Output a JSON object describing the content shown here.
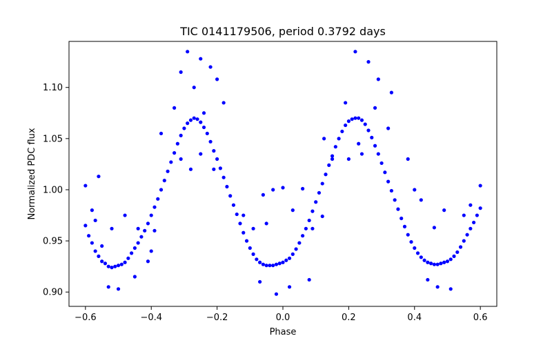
{
  "chart_data": {
    "type": "scatter",
    "title": "TIC 0141179506, period 0.3792 days",
    "xlabel": "Phase",
    "ylabel": "Normalized PDC flux",
    "xlim": [
      -0.65,
      0.65
    ],
    "ylim": [
      0.886,
      1.145
    ],
    "xticks": [
      -0.6,
      -0.4,
      -0.2,
      0.0,
      0.2,
      0.4,
      0.6
    ],
    "xtick_labels": [
      "−0.6",
      "−0.4",
      "−0.2",
      "0.0",
      "0.2",
      "0.4",
      "0.6"
    ],
    "yticks": [
      0.9,
      0.95,
      1.0,
      1.05,
      1.1
    ],
    "ytick_labels": [
      "0.90",
      "0.95",
      "1.00",
      "1.05",
      "1.10"
    ],
    "grid": false,
    "marker_color": "#0000ff",
    "series": [
      {
        "points": [
          [
            -0.6,
            0.965
          ],
          [
            -0.59,
            0.955
          ],
          [
            -0.58,
            0.948
          ],
          [
            -0.57,
            0.94
          ],
          [
            -0.56,
            0.935
          ],
          [
            -0.55,
            0.93
          ],
          [
            -0.54,
            0.928
          ],
          [
            -0.53,
            0.925
          ],
          [
            -0.52,
            0.924
          ],
          [
            -0.51,
            0.925
          ],
          [
            -0.5,
            0.926
          ],
          [
            -0.49,
            0.927
          ],
          [
            -0.48,
            0.929
          ],
          [
            -0.47,
            0.933
          ],
          [
            -0.46,
            0.938
          ],
          [
            -0.45,
            0.943
          ],
          [
            -0.44,
            0.948
          ],
          [
            -0.43,
            0.954
          ],
          [
            -0.42,
            0.96
          ],
          [
            -0.41,
            0.967
          ],
          [
            -0.4,
            0.975
          ],
          [
            -0.39,
            0.983
          ],
          [
            -0.38,
            0.991
          ],
          [
            -0.37,
            1.0
          ],
          [
            -0.36,
            1.009
          ],
          [
            -0.35,
            1.018
          ],
          [
            -0.34,
            1.027
          ],
          [
            -0.33,
            1.036
          ],
          [
            -0.32,
            1.045
          ],
          [
            -0.31,
            1.053
          ],
          [
            -0.3,
            1.06
          ],
          [
            -0.29,
            1.065
          ],
          [
            -0.28,
            1.068
          ],
          [
            -0.27,
            1.07
          ],
          [
            -0.26,
            1.069
          ],
          [
            -0.25,
            1.066
          ],
          [
            -0.24,
            1.061
          ],
          [
            -0.23,
            1.055
          ],
          [
            -0.22,
            1.047
          ],
          [
            -0.21,
            1.038
          ],
          [
            -0.2,
            1.03
          ],
          [
            -0.19,
            1.021
          ],
          [
            -0.18,
            1.012
          ],
          [
            -0.17,
            1.003
          ],
          [
            -0.16,
            0.994
          ],
          [
            -0.15,
            0.985
          ],
          [
            -0.14,
            0.976
          ],
          [
            -0.13,
            0.967
          ],
          [
            -0.12,
            0.958
          ],
          [
            -0.11,
            0.95
          ],
          [
            -0.1,
            0.943
          ],
          [
            -0.09,
            0.937
          ],
          [
            -0.08,
            0.932
          ],
          [
            -0.07,
            0.929
          ],
          [
            -0.06,
            0.927
          ],
          [
            -0.05,
            0.926
          ],
          [
            -0.04,
            0.926
          ],
          [
            -0.03,
            0.926
          ],
          [
            -0.02,
            0.927
          ],
          [
            -0.01,
            0.928
          ],
          [
            0.0,
            0.929
          ],
          [
            0.01,
            0.931
          ],
          [
            0.02,
            0.933
          ],
          [
            0.03,
            0.937
          ],
          [
            0.04,
            0.942
          ],
          [
            0.05,
            0.948
          ],
          [
            0.06,
            0.955
          ],
          [
            0.07,
            0.962
          ],
          [
            0.08,
            0.97
          ],
          [
            0.09,
            0.979
          ],
          [
            0.1,
            0.988
          ],
          [
            0.11,
            0.997
          ],
          [
            0.12,
            1.006
          ],
          [
            0.13,
            1.015
          ],
          [
            0.14,
            1.024
          ],
          [
            0.15,
            1.033
          ],
          [
            0.16,
            1.042
          ],
          [
            0.17,
            1.05
          ],
          [
            0.18,
            1.057
          ],
          [
            0.19,
            1.063
          ],
          [
            0.2,
            1.067
          ],
          [
            0.21,
            1.069
          ],
          [
            0.22,
            1.07
          ],
          [
            0.23,
            1.07
          ],
          [
            0.24,
            1.068
          ],
          [
            0.25,
            1.064
          ],
          [
            0.26,
            1.058
          ],
          [
            0.27,
            1.051
          ],
          [
            0.28,
            1.043
          ],
          [
            0.29,
            1.035
          ],
          [
            0.3,
            1.026
          ],
          [
            0.31,
            1.017
          ],
          [
            0.32,
            1.008
          ],
          [
            0.33,
            0.999
          ],
          [
            0.34,
            0.99
          ],
          [
            0.35,
            0.981
          ],
          [
            0.36,
            0.972
          ],
          [
            0.37,
            0.964
          ],
          [
            0.38,
            0.956
          ],
          [
            0.39,
            0.949
          ],
          [
            0.4,
            0.943
          ],
          [
            0.41,
            0.938
          ],
          [
            0.42,
            0.934
          ],
          [
            0.43,
            0.931
          ],
          [
            0.44,
            0.929
          ],
          [
            0.45,
            0.928
          ],
          [
            0.46,
            0.927
          ],
          [
            0.47,
            0.927
          ],
          [
            0.48,
            0.928
          ],
          [
            0.49,
            0.929
          ],
          [
            0.5,
            0.93
          ],
          [
            0.51,
            0.932
          ],
          [
            0.52,
            0.935
          ],
          [
            0.53,
            0.939
          ],
          [
            0.54,
            0.944
          ],
          [
            0.55,
            0.95
          ],
          [
            0.56,
            0.956
          ],
          [
            0.57,
            0.962
          ],
          [
            0.58,
            0.968
          ],
          [
            0.59,
            0.975
          ],
          [
            0.6,
            0.982
          ],
          [
            -0.29,
            1.135
          ],
          [
            -0.25,
            1.128
          ],
          [
            -0.22,
            1.12
          ],
          [
            -0.31,
            1.115
          ],
          [
            -0.2,
            1.108
          ],
          [
            -0.27,
            1.1
          ],
          [
            -0.18,
            1.085
          ],
          [
            -0.33,
            1.08
          ],
          [
            -0.37,
            1.055
          ],
          [
            -0.25,
            1.035
          ],
          [
            -0.31,
            1.03
          ],
          [
            -0.21,
            1.02
          ],
          [
            -0.56,
            1.013
          ],
          [
            -0.6,
            1.004
          ],
          [
            -0.58,
            0.98
          ],
          [
            -0.57,
            0.97
          ],
          [
            -0.48,
            0.975
          ],
          [
            -0.44,
            0.962
          ],
          [
            -0.52,
            0.962
          ],
          [
            -0.12,
            0.975
          ],
          [
            -0.09,
            0.962
          ],
          [
            -0.06,
            0.995
          ],
          [
            -0.03,
            1.0
          ],
          [
            0.0,
            1.002
          ],
          [
            0.06,
            1.001
          ],
          [
            0.03,
            0.98
          ],
          [
            -0.05,
            0.967
          ],
          [
            0.09,
            0.962
          ],
          [
            0.12,
            0.974
          ],
          [
            0.125,
            1.05
          ],
          [
            0.15,
            1.03
          ],
          [
            0.19,
            1.085
          ],
          [
            0.22,
            1.135
          ],
          [
            0.26,
            1.125
          ],
          [
            0.29,
            1.108
          ],
          [
            0.33,
            1.095
          ],
          [
            0.28,
            1.08
          ],
          [
            0.24,
            1.035
          ],
          [
            0.32,
            1.06
          ],
          [
            0.38,
            1.03
          ],
          [
            0.4,
            1.0
          ],
          [
            0.42,
            0.99
          ],
          [
            0.49,
            0.98
          ],
          [
            0.46,
            0.963
          ],
          [
            0.55,
            0.975
          ],
          [
            0.57,
            0.985
          ],
          [
            0.6,
            1.004
          ],
          [
            -0.53,
            0.905
          ],
          [
            -0.5,
            0.903
          ],
          [
            -0.45,
            0.915
          ],
          [
            -0.02,
            0.898
          ],
          [
            0.02,
            0.905
          ],
          [
            0.08,
            0.912
          ],
          [
            -0.07,
            0.91
          ],
          [
            0.47,
            0.905
          ],
          [
            0.51,
            0.903
          ],
          [
            0.44,
            0.912
          ],
          [
            -0.41,
            0.93
          ],
          [
            -0.39,
            0.96
          ],
          [
            -0.4,
            0.94
          ],
          [
            -0.55,
            0.945
          ],
          [
            -0.28,
            1.02
          ],
          [
            -0.24,
            1.075
          ],
          [
            0.2,
            1.03
          ],
          [
            0.23,
            1.045
          ]
        ]
      }
    ]
  }
}
